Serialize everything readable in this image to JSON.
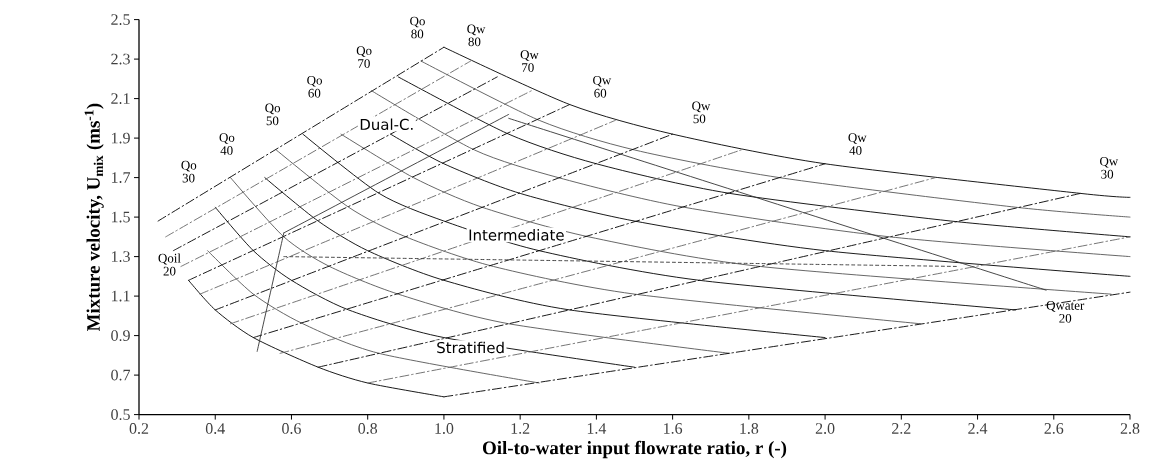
{
  "chart_data": {
    "type": "line",
    "xlabel": "Oil-to-water input flowrate ratio, r (-)",
    "ylabel": "Mixture velocity, U$_{mix}$ (ms$^{-1}$)",
    "xlim": [
      0.2,
      2.8
    ],
    "ylim": [
      0.5,
      2.5
    ],
    "xticks": [
      0.2,
      0.4,
      0.6,
      0.8,
      {
        "value": 1.0,
        "label": "1.0"
      },
      1.2,
      1.4,
      1.6,
      1.8,
      {
        "value": 2.0,
        "label": "2.0"
      },
      2.2,
      2.4,
      2.6,
      2.8
    ],
    "yticks": [
      0.5,
      0.7,
      0.9,
      1.1,
      1.3,
      1.5,
      1.7,
      1.9,
      2.1,
      2.3,
      2.5
    ],
    "series": [
      {
        "type": "line",
        "color": "#000000",
        "line_style": "solid",
        "x": [
          0.33,
          0.4,
          0.5,
          0.67,
          0.8,
          1.0
        ],
        "values": [
          1.18,
          1.03,
          0.89,
          0.74,
          0.66,
          0.59
        ]
      },
      {
        "type": "line",
        "color": "#555555",
        "line_style": "solid",
        "x": [
          0.38,
          0.5,
          0.63,
          0.83,
          1.25
        ],
        "values": [
          1.33,
          1.11,
          0.96,
          0.81,
          0.66
        ]
      },
      {
        "type": "line",
        "color": "#000000",
        "line_style": "solid",
        "x": [
          0.4,
          0.5,
          0.6,
          0.75,
          1.0,
          1.5
        ],
        "values": [
          1.55,
          1.33,
          1.18,
          1.03,
          0.89,
          0.74
        ]
      },
      {
        "type": "line",
        "color": "#555555",
        "line_style": "solid",
        "x": [
          0.44,
          0.58,
          0.7,
          0.88,
          1.17,
          1.75
        ],
        "values": [
          1.7,
          1.4,
          1.25,
          1.11,
          0.96,
          0.81
        ]
      },
      {
        "type": "line",
        "color": "#000000",
        "line_style": "solid",
        "x": [
          0.53,
          0.67,
          0.8,
          1.0,
          1.33,
          2.0
        ],
        "values": [
          1.7,
          1.48,
          1.33,
          1.18,
          1.03,
          0.89
        ]
      },
      {
        "type": "line",
        "color": "#555555",
        "line_style": "solid",
        "x": [
          0.56,
          0.75,
          0.9,
          1.13,
          1.5,
          2.25
        ],
        "values": [
          1.84,
          1.55,
          1.4,
          1.25,
          1.11,
          0.96
        ]
      },
      {
        "type": "line",
        "color": "#000000",
        "line_style": "solid",
        "x": [
          0.63,
          0.83,
          1.0,
          1.25,
          1.67,
          2.5
        ],
        "values": [
          1.92,
          1.62,
          1.48,
          1.33,
          1.18,
          1.03
        ]
      },
      {
        "type": "line",
        "color": "#555555",
        "line_style": "solid",
        "x": [
          0.73,
          0.92,
          1.1,
          1.38,
          1.83,
          2.75
        ],
        "values": [
          1.92,
          1.7,
          1.55,
          1.4,
          1.25,
          1.11
        ]
      },
      {
        "type": "line",
        "color": "#000000",
        "line_style": "solid",
        "x": [
          0.86,
          1.0,
          1.2,
          1.5,
          2.0,
          2.8
        ],
        "values": [
          1.92,
          1.77,
          1.62,
          1.48,
          1.33,
          1.2
        ]
      },
      {
        "type": "line",
        "color": "#555555",
        "line_style": "solid",
        "x": [
          0.81,
          1.08,
          1.3,
          1.63,
          2.17,
          2.8
        ],
        "values": [
          2.14,
          1.84,
          1.7,
          1.55,
          1.4,
          1.3
        ]
      },
      {
        "type": "line",
        "color": "#000000",
        "line_style": "solid",
        "x": [
          0.88,
          1.17,
          1.4,
          1.75,
          2.33,
          2.8
        ],
        "values": [
          2.21,
          1.92,
          1.77,
          1.62,
          1.48,
          1.4
        ]
      },
      {
        "type": "line",
        "color": "#555555",
        "line_style": "solid",
        "x": [
          0.94,
          1.25,
          1.5,
          1.88,
          2.5,
          2.8
        ],
        "values": [
          2.29,
          1.99,
          1.84,
          1.7,
          1.55,
          1.5
        ]
      },
      {
        "type": "line",
        "color": "#000000",
        "line_style": "solid",
        "x": [
          1.0,
          1.33,
          1.6,
          2.0,
          2.67,
          2.8
        ],
        "values": [
          2.36,
          2.07,
          1.92,
          1.77,
          1.62,
          1.6
        ]
      },
      {
        "type": "line",
        "color": "#000000",
        "line_style": "dashdot",
        "x": [
          1.0,
          2.8
        ],
        "values": [
          0.59,
          1.12
        ]
      },
      {
        "type": "line",
        "color": "#666666",
        "line_style": "dashdot",
        "x": [
          0.8,
          2.8
        ],
        "values": [
          0.66,
          1.4
        ]
      },
      {
        "type": "line",
        "color": "#000000",
        "line_style": "dashdot",
        "x": [
          0.67,
          2.67
        ],
        "values": [
          0.74,
          1.62
        ]
      },
      {
        "type": "line",
        "color": "#666666",
        "line_style": "dashdot",
        "x": [
          0.57,
          2.29
        ],
        "values": [
          0.81,
          1.7
        ]
      },
      {
        "type": "line",
        "color": "#000000",
        "line_style": "dashdot",
        "x": [
          0.5,
          2.0
        ],
        "values": [
          0.89,
          1.77
        ]
      },
      {
        "type": "line",
        "color": "#666666",
        "line_style": "dashdot",
        "x": [
          0.44,
          1.78
        ],
        "values": [
          0.96,
          1.84
        ]
      },
      {
        "type": "line",
        "color": "#000000",
        "line_style": "dashdot",
        "x": [
          0.4,
          1.6
        ],
        "values": [
          1.03,
          1.92
        ]
      },
      {
        "type": "line",
        "color": "#666666",
        "line_style": "dashdot",
        "x": [
          0.36,
          1.45
        ],
        "values": [
          1.11,
          1.99
        ]
      },
      {
        "type": "line",
        "color": "#000000",
        "line_style": "dashdot",
        "x": [
          0.33,
          1.33
        ],
        "values": [
          1.18,
          2.07
        ]
      },
      {
        "type": "line",
        "color": "#666666",
        "line_style": "dashdot",
        "x": [
          0.31,
          1.23
        ],
        "values": [
          1.25,
          2.14
        ]
      },
      {
        "type": "line",
        "color": "#000000",
        "line_style": "dashdot",
        "x": [
          0.29,
          1.14
        ],
        "values": [
          1.33,
          2.21
        ]
      },
      {
        "type": "line",
        "color": "#666666",
        "line_style": "dashdot",
        "x": [
          0.27,
          1.07
        ],
        "values": [
          1.4,
          2.29
        ]
      },
      {
        "type": "line",
        "color": "#000000",
        "line_style": "dashdot",
        "x": [
          0.25,
          1.0
        ],
        "values": [
          1.48,
          2.36
        ]
      },
      {
        "color": "#333333",
        "line_style": "solid",
        "x": [
          0.51,
          0.58
        ],
        "values": [
          0.82,
          1.42
        ]
      },
      {
        "color": "#333333",
        "line_style": "solid",
        "x": [
          0.58,
          1.17
        ],
        "values": [
          1.42,
          2.02
        ]
      },
      {
        "color": "#333333",
        "line_style": "solid",
        "x": [
          1.17,
          2.58
        ],
        "values": [
          2.0,
          1.13
        ]
      },
      {
        "color": "#333333",
        "line_style": "dashed",
        "x": [
          0.58,
          2.35
        ],
        "values": [
          1.3,
          1.25
        ]
      }
    ],
    "annotations": [
      "Qoil 20",
      "Qo 30",
      "Qo 40",
      "Qo 50",
      "Qo 60",
      "Qo 70",
      "Qo 80",
      "Qw 80",
      "Qw 70",
      "Qw 60",
      "Qw 50",
      "Qw 40",
      "Qw 30",
      "Qwater 20",
      "Dual-C.",
      "Intermediate",
      "Stratified"
    ]
  }
}
